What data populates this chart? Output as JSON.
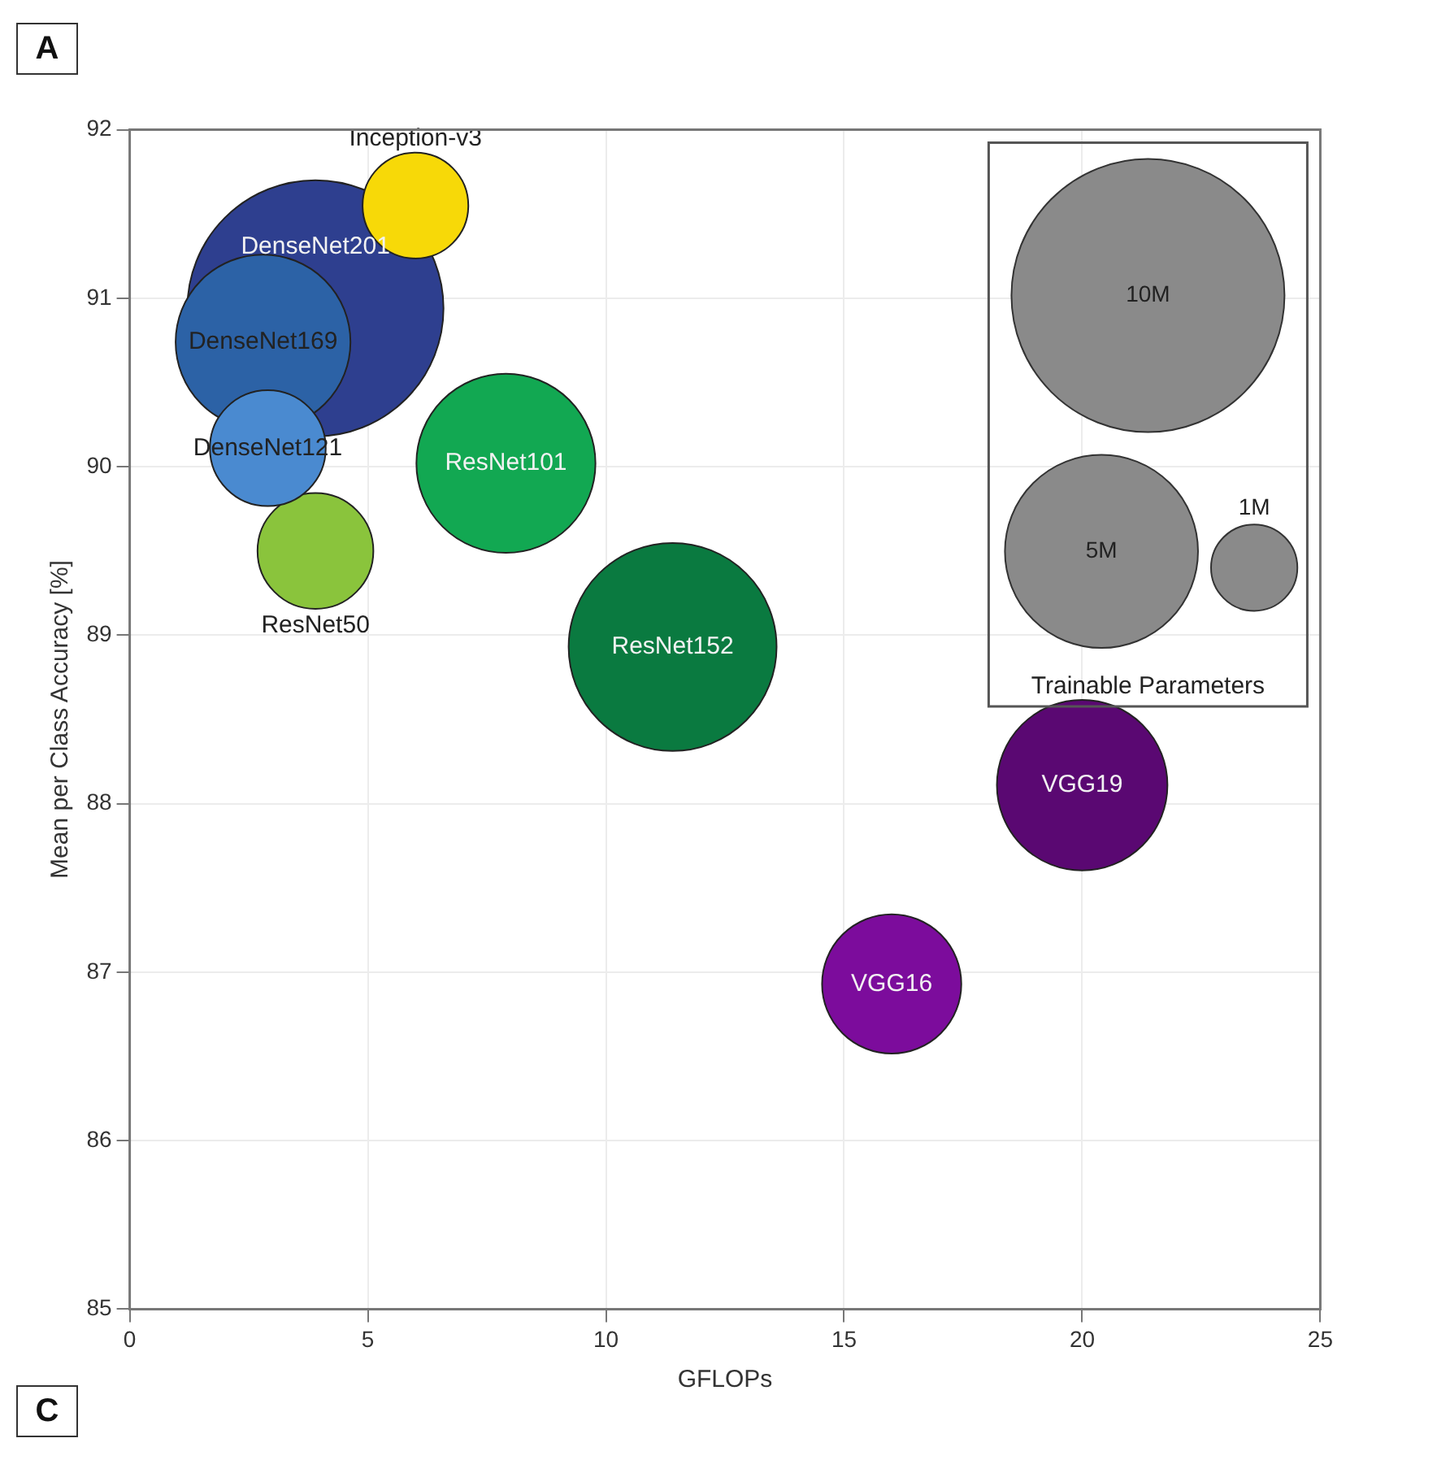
{
  "chart_data": {
    "type": "bubble",
    "xlabel": "GFLOPs",
    "ylabel": "Mean per Class Accuracy [%]",
    "legend_title": "Trainable Parameters",
    "xlim": [
      0,
      25
    ],
    "xticks": [
      0,
      5,
      10,
      15,
      20,
      25
    ],
    "ylim": [
      85,
      92
    ],
    "yticks": [
      85,
      86,
      87,
      88,
      89,
      90,
      91,
      92
    ],
    "grid": true,
    "size_legend": [
      {
        "value": 10,
        "label": "10M"
      },
      {
        "value": 5,
        "label": "5M"
      },
      {
        "value": 1,
        "label": "1M"
      }
    ],
    "annotations": [
      "A",
      "C"
    ],
    "series": [
      {
        "name": "Inception-v3",
        "color": "#f7d908",
        "x": [
          6
        ],
        "values": [
          91.55
        ],
        "sizes": [
          1.5
        ]
      },
      {
        "name": "DenseNet121",
        "color": "#4a8ad0",
        "x": [
          2.9
        ],
        "values": [
          90.11
        ],
        "sizes": [
          1.8
        ]
      },
      {
        "name": "DenseNet169",
        "color": "#2c62a6",
        "x": [
          2.8
        ],
        "values": [
          90.74
        ],
        "sizes": [
          4.1
        ]
      },
      {
        "name": "ResNet50",
        "color": "#8ac43c",
        "x": [
          3.9
        ],
        "values": [
          89.5
        ],
        "sizes": [
          1.8
        ]
      },
      {
        "name": "ResNet101",
        "color": "#12a852",
        "x": [
          7.9
        ],
        "values": [
          90.02
        ],
        "sizes": [
          4.3
        ]
      },
      {
        "name": "ResNet152",
        "color": "#0a7a40",
        "x": [
          11.4
        ],
        "values": [
          88.93
        ],
        "sizes": [
          5.8
        ]
      },
      {
        "name": "VGG19",
        "color": "#5a0872",
        "x": [
          20
        ],
        "values": [
          88.11
        ],
        "sizes": [
          3.9
        ]
      },
      {
        "name": "VGG16",
        "color": "#7c0c9c",
        "x": [
          16
        ],
        "values": [
          86.93
        ],
        "sizes": [
          2.6
        ]
      },
      {
        "name": "DenseNet201",
        "color": "#2e3f8f",
        "x": [
          3.9
        ],
        "values": [
          90.94
        ],
        "sizes": [
          8.8
        ]
      }
    ]
  }
}
